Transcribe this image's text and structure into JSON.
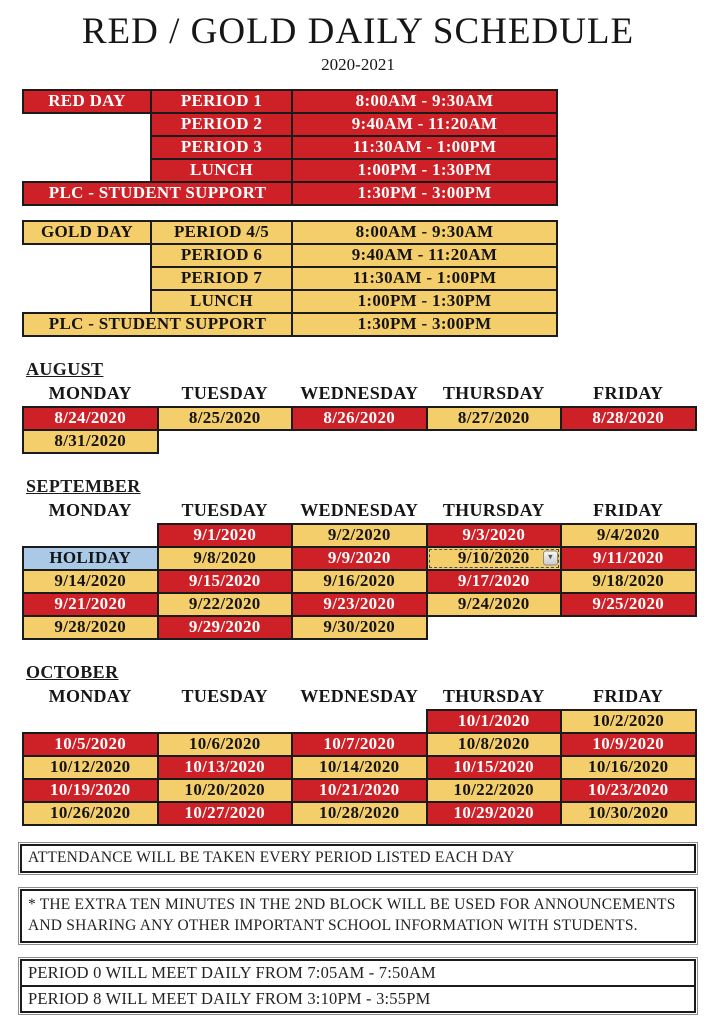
{
  "title": "RED / GOLD DAILY SCHEDULE",
  "subtitle": "2020-2021",
  "colors": {
    "red_day": "#ce2027",
    "gold_day": "#f5ce6c",
    "holiday_blue": "#a9c9e7",
    "table_border": "#1b1b1b"
  },
  "red_day": {
    "label": "RED DAY",
    "periods": [
      {
        "period": "PERIOD 1",
        "time": "8:00AM - 9:30AM"
      },
      {
        "period": "PERIOD 2",
        "time": "9:40AM - 11:20AM"
      },
      {
        "period": "PERIOD 3",
        "time": "11:30AM - 1:00PM"
      },
      {
        "period": "LUNCH",
        "time": "1:00PM - 1:30PM"
      }
    ],
    "plc": {
      "label": "PLC - STUDENT SUPPORT",
      "time": "1:30PM - 3:00PM"
    }
  },
  "gold_day": {
    "label": "GOLD DAY",
    "periods": [
      {
        "period": "PERIOD 4/5",
        "time": "8:00AM - 9:30AM"
      },
      {
        "period": "PERIOD 6",
        "time": "9:40AM - 11:20AM"
      },
      {
        "period": "PERIOD 7",
        "time": "11:30AM - 1:00PM"
      },
      {
        "period": "LUNCH",
        "time": "1:00PM - 1:30PM"
      }
    ],
    "plc": {
      "label": "PLC - STUDENT SUPPORT",
      "time": "1:30PM - 3:00PM"
    }
  },
  "day_headers": [
    "MONDAY",
    "TUESDAY",
    "WEDNESDAY",
    "THURSDAY",
    "FRIDAY"
  ],
  "months": [
    {
      "name": "AUGUST",
      "rows": [
        [
          {
            "text": "8/24/2020",
            "type": "red"
          },
          {
            "text": "8/25/2020",
            "type": "gold"
          },
          {
            "text": "8/26/2020",
            "type": "red"
          },
          {
            "text": "8/27/2020",
            "type": "gold"
          },
          {
            "text": "8/28/2020",
            "type": "red"
          }
        ],
        [
          {
            "text": "8/31/2020",
            "type": "gold"
          },
          {
            "text": "",
            "type": "empty"
          },
          {
            "text": "",
            "type": "empty"
          },
          {
            "text": "",
            "type": "empty"
          },
          {
            "text": "",
            "type": "empty"
          }
        ]
      ]
    },
    {
      "name": "SEPTEMBER",
      "rows": [
        [
          {
            "text": "",
            "type": "empty"
          },
          {
            "text": "9/1/2020",
            "type": "red"
          },
          {
            "text": "9/2/2020",
            "type": "gold"
          },
          {
            "text": "9/3/2020",
            "type": "red"
          },
          {
            "text": "9/4/2020",
            "type": "gold"
          }
        ],
        [
          {
            "text": "HOLIDAY",
            "type": "blue"
          },
          {
            "text": "9/8/2020",
            "type": "gold"
          },
          {
            "text": "9/9/2020",
            "type": "red"
          },
          {
            "text": "9/10/2020",
            "type": "gold selected"
          },
          {
            "text": "9/11/2020",
            "type": "red"
          }
        ],
        [
          {
            "text": "9/14/2020",
            "type": "gold"
          },
          {
            "text": "9/15/2020",
            "type": "red"
          },
          {
            "text": "9/16/2020",
            "type": "gold"
          },
          {
            "text": "9/17/2020",
            "type": "red"
          },
          {
            "text": "9/18/2020",
            "type": "gold"
          }
        ],
        [
          {
            "text": "9/21/2020",
            "type": "red"
          },
          {
            "text": "9/22/2020",
            "type": "gold"
          },
          {
            "text": "9/23/2020",
            "type": "red"
          },
          {
            "text": "9/24/2020",
            "type": "gold"
          },
          {
            "text": "9/25/2020",
            "type": "red"
          }
        ],
        [
          {
            "text": "9/28/2020",
            "type": "gold"
          },
          {
            "text": "9/29/2020",
            "type": "red"
          },
          {
            "text": "9/30/2020",
            "type": "gold"
          },
          {
            "text": "",
            "type": "empty"
          },
          {
            "text": "",
            "type": "empty"
          }
        ]
      ]
    },
    {
      "name": "OCTOBER",
      "rows": [
        [
          {
            "text": "",
            "type": "empty"
          },
          {
            "text": "",
            "type": "empty"
          },
          {
            "text": "",
            "type": "empty"
          },
          {
            "text": "10/1/2020",
            "type": "red"
          },
          {
            "text": "10/2/2020",
            "type": "gold"
          }
        ],
        [
          {
            "text": "10/5/2020",
            "type": "red"
          },
          {
            "text": "10/6/2020",
            "type": "gold"
          },
          {
            "text": "10/7/2020",
            "type": "red"
          },
          {
            "text": "10/8/2020",
            "type": "gold"
          },
          {
            "text": "10/9/2020",
            "type": "red"
          }
        ],
        [
          {
            "text": "10/12/2020",
            "type": "gold"
          },
          {
            "text": "10/13/2020",
            "type": "red"
          },
          {
            "text": "10/14/2020",
            "type": "gold"
          },
          {
            "text": "10/15/2020",
            "type": "red"
          },
          {
            "text": "10/16/2020",
            "type": "gold"
          }
        ],
        [
          {
            "text": "10/19/2020",
            "type": "red"
          },
          {
            "text": "10/20/2020",
            "type": "gold"
          },
          {
            "text": "10/21/2020",
            "type": "red"
          },
          {
            "text": "10/22/2020",
            "type": "gold"
          },
          {
            "text": "10/23/2020",
            "type": "red"
          }
        ],
        [
          {
            "text": "10/26/2020",
            "type": "gold"
          },
          {
            "text": "10/27/2020",
            "type": "red"
          },
          {
            "text": "10/28/2020",
            "type": "gold"
          },
          {
            "text": "10/29/2020",
            "type": "red"
          },
          {
            "text": "10/30/2020",
            "type": "gold"
          }
        ]
      ]
    }
  ],
  "selected_widget": {
    "icon": "chevron-down-icon",
    "glyph": "▾"
  },
  "notes": {
    "attendance": "ATTENDANCE WILL BE TAKEN EVERY PERIOD LISTED EACH DAY",
    "extra_minutes": "* THE EXTRA TEN MINUTES IN THE 2ND BLOCK WILL BE USED FOR ANNOUNCEMENTS AND SHARING ANY OTHER IMPORTANT SCHOOL INFORMATION WITH STUDENTS."
  },
  "period_box": {
    "line1": "PERIOD 0 WILL MEET DAILY FROM 7:05AM - 7:50AM",
    "line2": "PERIOD 8 WILL MEET DAILY FROM 3:10PM - 3:55PM"
  }
}
